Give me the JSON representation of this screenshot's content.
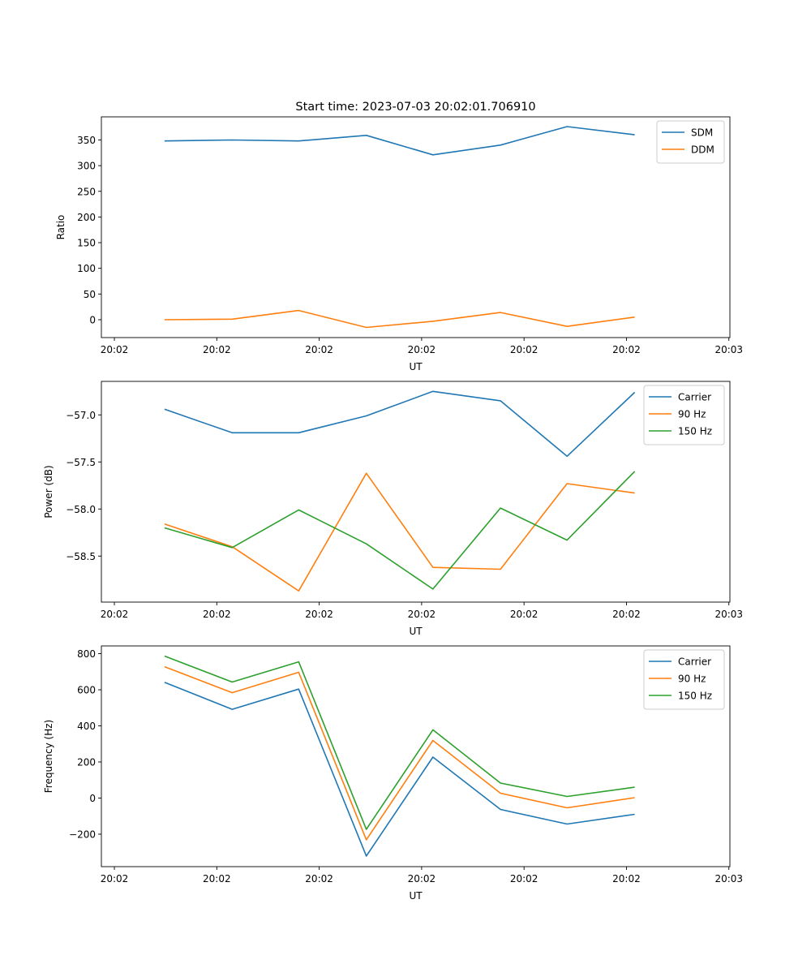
{
  "title": "Start time: 2023-07-03 20:02:01.706910",
  "colors": {
    "blue": "#1f77b4",
    "orange": "#ff7f0e",
    "green": "#2ca02c"
  },
  "chart_data": [
    {
      "type": "line",
      "xlabel": "UT",
      "ylabel": "Ratio",
      "xlim": [
        -1.27,
        60.1
      ],
      "ylim": [
        -34.8,
        395
      ],
      "x_ticks": [
        0,
        10,
        20,
        30,
        40,
        50,
        60
      ],
      "x_tick_labels": [
        "20:02",
        "20:02",
        "20:02",
        "20:02",
        "20:02",
        "20:02",
        "20:03"
      ],
      "y_ticks": [
        0,
        50,
        100,
        150,
        200,
        250,
        300,
        350
      ],
      "y_tick_labels": [
        "0",
        "50",
        "100",
        "150",
        "200",
        "250",
        "300",
        "350"
      ],
      "legend": "top-right",
      "x": [
        4.9,
        11.5,
        18.0,
        24.6,
        31.1,
        37.7,
        44.2,
        50.8
      ],
      "series": [
        {
          "name": "SDM",
          "color": "#1f77b4",
          "values": [
            348,
            350,
            348,
            359,
            321,
            340,
            376,
            360
          ]
        },
        {
          "name": "DDM",
          "color": "#ff7f0e",
          "values": [
            0,
            1,
            18,
            -15,
            -3,
            14,
            -13,
            5
          ]
        }
      ]
    },
    {
      "type": "line",
      "xlabel": "UT",
      "ylabel": "Power (dB)",
      "xlim": [
        -1.27,
        60.1
      ],
      "ylim": [
        -58.989,
        -56.644
      ],
      "x_ticks": [
        0,
        10,
        20,
        30,
        40,
        50,
        60
      ],
      "x_tick_labels": [
        "20:02",
        "20:02",
        "20:02",
        "20:02",
        "20:02",
        "20:02",
        "20:03"
      ],
      "y_ticks": [
        -58.5,
        -58.0,
        -57.5,
        -57.0
      ],
      "y_tick_labels": [
        "−58.5",
        "−58.0",
        "−57.5",
        "−57.0"
      ],
      "legend": "top-right",
      "x": [
        4.9,
        11.5,
        18.0,
        24.6,
        31.1,
        37.7,
        44.2,
        50.8
      ],
      "series": [
        {
          "name": "Carrier",
          "color": "#1f77b4",
          "values": [
            -56.94,
            -57.19,
            -57.19,
            -57.01,
            -56.75,
            -56.85,
            -57.44,
            -56.76
          ]
        },
        {
          "name": "90 Hz",
          "color": "#ff7f0e",
          "values": [
            -58.16,
            -58.4,
            -58.87,
            -57.62,
            -58.62,
            -58.64,
            -57.73,
            -57.83
          ]
        },
        {
          "name": "150 Hz",
          "color": "#2ca02c",
          "values": [
            -58.2,
            -58.41,
            -58.01,
            -58.37,
            -58.85,
            -57.99,
            -58.33,
            -57.6
          ]
        }
      ]
    },
    {
      "type": "line",
      "xlabel": "UT",
      "ylabel": "Frequency (Hz)",
      "xlim": [
        -1.27,
        60.1
      ],
      "ylim": [
        -380,
        843
      ],
      "x_ticks": [
        0,
        10,
        20,
        30,
        40,
        50,
        60
      ],
      "x_tick_labels": [
        "20:02",
        "20:02",
        "20:02",
        "20:02",
        "20:02",
        "20:02",
        "20:03"
      ],
      "y_ticks": [
        -200,
        0,
        200,
        400,
        600,
        800
      ],
      "y_tick_labels": [
        "−200",
        "0",
        "200",
        "400",
        "600",
        "800"
      ],
      "legend": "top-right",
      "x": [
        4.9,
        11.5,
        18.0,
        24.6,
        31.1,
        37.7,
        44.2,
        50.8
      ],
      "series": [
        {
          "name": "Carrier",
          "color": "#1f77b4",
          "values": [
            641,
            492,
            604,
            -321,
            227,
            -63,
            -144,
            -90
          ]
        },
        {
          "name": "90 Hz",
          "color": "#ff7f0e",
          "values": [
            728,
            584,
            697,
            -231,
            319,
            27,
            -54,
            2
          ]
        },
        {
          "name": "150 Hz",
          "color": "#2ca02c",
          "values": [
            787,
            643,
            755,
            -173,
            378,
            83,
            9,
            60
          ]
        }
      ]
    }
  ]
}
